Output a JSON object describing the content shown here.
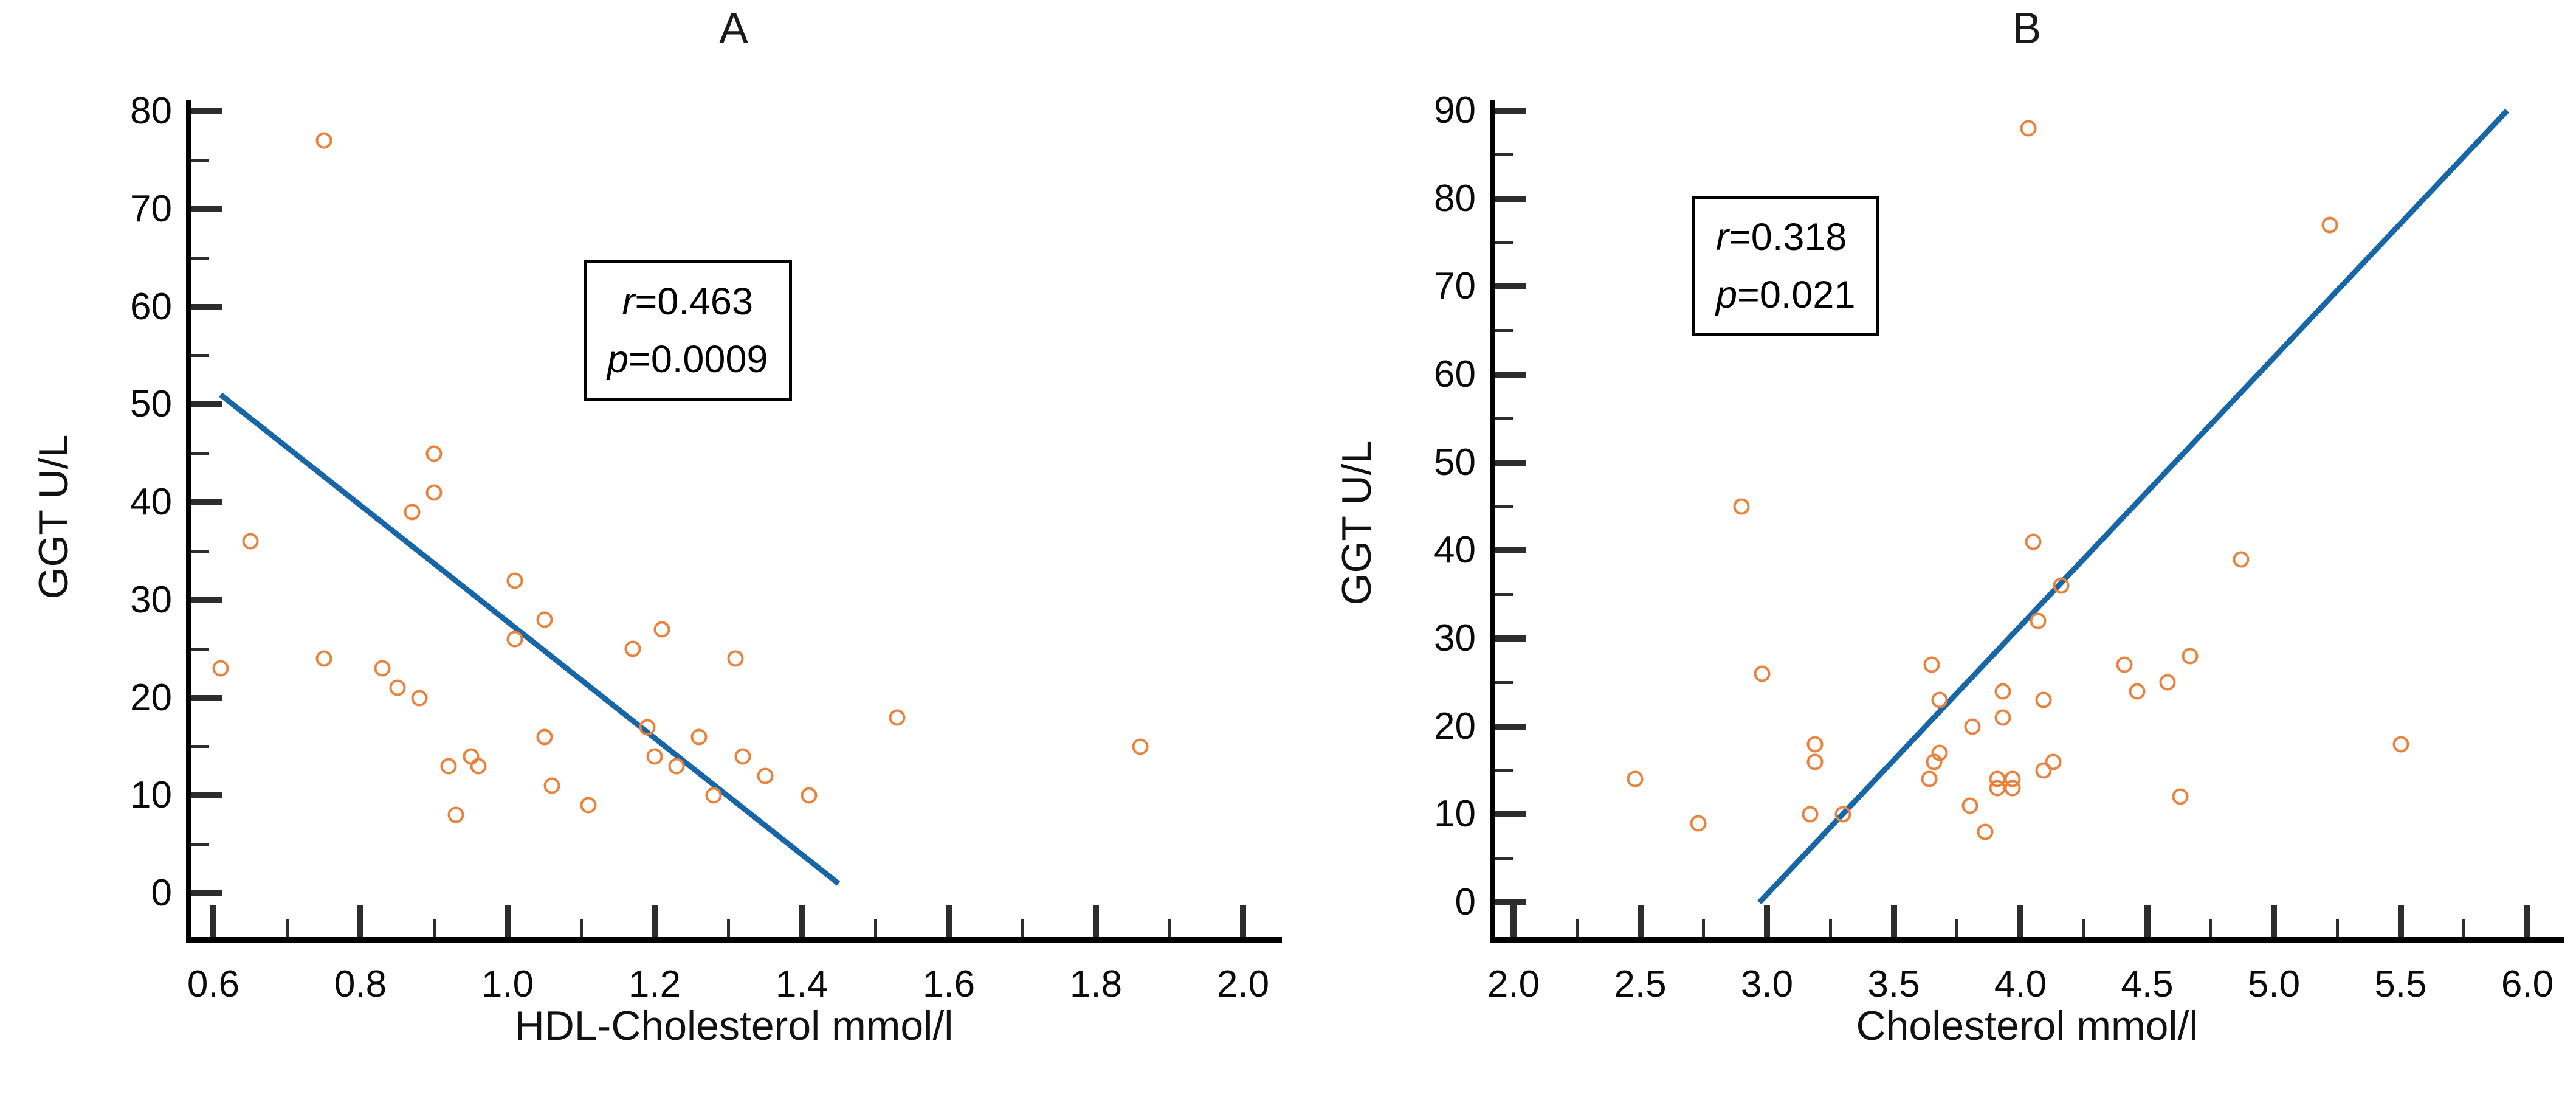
{
  "page": {
    "background": "#ffffff"
  },
  "chart_data": [
    {
      "id": "A",
      "type": "scatter",
      "title": "A",
      "xlabel": "HDL-Cholesterol mmol/l",
      "ylabel": "GGT U/L",
      "xlim": [
        0.6,
        2.0
      ],
      "ylim": [
        0,
        80
      ],
      "x_major_step": 0.2,
      "x_minor_step": 0.1,
      "y_major_step": 10,
      "y_minor_step": 5,
      "x_tick_labels": [
        "0.6",
        "0.8",
        "1.0",
        "1.2",
        "1.4",
        "1.6",
        "1.8",
        "2.0"
      ],
      "y_tick_labels": [
        "0",
        "10",
        "20",
        "30",
        "40",
        "50",
        "60",
        "70",
        "80"
      ],
      "grid": false,
      "legend": false,
      "annotation": {
        "r_label": "r=0.463",
        "p_label": "p=0.0009"
      },
      "trend_line": {
        "x1": 0.61,
        "y1": 51,
        "x2": 1.45,
        "y2": 1
      },
      "marker_color": "#e8823c",
      "line_color": "#1767a8",
      "points": [
        [
          0.61,
          23
        ],
        [
          0.65,
          36
        ],
        [
          0.75,
          77
        ],
        [
          0.75,
          24
        ],
        [
          0.83,
          23
        ],
        [
          0.85,
          21
        ],
        [
          0.88,
          20
        ],
        [
          0.87,
          39
        ],
        [
          0.9,
          41
        ],
        [
          0.9,
          45
        ],
        [
          0.92,
          13
        ],
        [
          0.93,
          8
        ],
        [
          0.95,
          14
        ],
        [
          0.96,
          13
        ],
        [
          1.01,
          32
        ],
        [
          1.01,
          26
        ],
        [
          1.05,
          28
        ],
        [
          1.05,
          16
        ],
        [
          1.06,
          11
        ],
        [
          1.11,
          9
        ],
        [
          1.17,
          25
        ],
        [
          1.21,
          27
        ],
        [
          1.19,
          17
        ],
        [
          1.2,
          14
        ],
        [
          1.23,
          13
        ],
        [
          1.26,
          16
        ],
        [
          1.28,
          10
        ],
        [
          1.31,
          24
        ],
        [
          1.32,
          14
        ],
        [
          1.35,
          12
        ],
        [
          1.41,
          10
        ],
        [
          1.53,
          18
        ],
        [
          1.86,
          15
        ]
      ]
    },
    {
      "id": "B",
      "type": "scatter",
      "title": "B",
      "xlabel": "Cholesterol mmol/l",
      "ylabel": "GGT U/L",
      "xlim": [
        2.0,
        6.0
      ],
      "ylim": [
        0,
        90
      ],
      "x_major_step": 0.5,
      "x_minor_step": 0.25,
      "y_major_step": 10,
      "y_minor_step": 5,
      "x_tick_labels": [
        "2.0",
        "2.5",
        "3.0",
        "3.5",
        "4.0",
        "4.5",
        "5.0",
        "5.5",
        "6.0"
      ],
      "y_tick_labels": [
        "0",
        "10",
        "20",
        "30",
        "40",
        "50",
        "60",
        "70",
        "80",
        "90"
      ],
      "grid": false,
      "legend": false,
      "annotation": {
        "r_label": "r=0.318",
        "p_label": "p=0.021"
      },
      "trend_line": {
        "x1": 2.97,
        "y1": 0,
        "x2": 5.92,
        "y2": 90
      },
      "marker_color": "#e8823c",
      "line_color": "#1767a8",
      "points": [
        [
          2.48,
          14
        ],
        [
          2.73,
          9
        ],
        [
          2.9,
          45
        ],
        [
          2.98,
          26
        ],
        [
          3.19,
          18
        ],
        [
          3.19,
          16
        ],
        [
          3.17,
          10
        ],
        [
          3.3,
          10
        ],
        [
          3.65,
          27
        ],
        [
          3.68,
          23
        ],
        [
          3.81,
          20
        ],
        [
          3.68,
          17
        ],
        [
          3.66,
          16
        ],
        [
          3.64,
          14
        ],
        [
          3.8,
          11
        ],
        [
          3.86,
          8
        ],
        [
          3.91,
          14
        ],
        [
          3.97,
          14
        ],
        [
          3.91,
          13
        ],
        [
          3.97,
          13
        ],
        [
          3.93,
          24
        ],
        [
          3.93,
          21
        ],
        [
          4.03,
          88
        ],
        [
          4.05,
          41
        ],
        [
          4.16,
          36
        ],
        [
          4.07,
          32
        ],
        [
          4.09,
          23
        ],
        [
          4.09,
          15
        ],
        [
          4.13,
          16
        ],
        [
          4.41,
          27
        ],
        [
          4.46,
          24
        ],
        [
          4.58,
          25
        ],
        [
          4.67,
          28
        ],
        [
          4.63,
          12
        ],
        [
          4.87,
          39
        ],
        [
          5.22,
          77
        ],
        [
          5.5,
          18
        ]
      ]
    }
  ]
}
